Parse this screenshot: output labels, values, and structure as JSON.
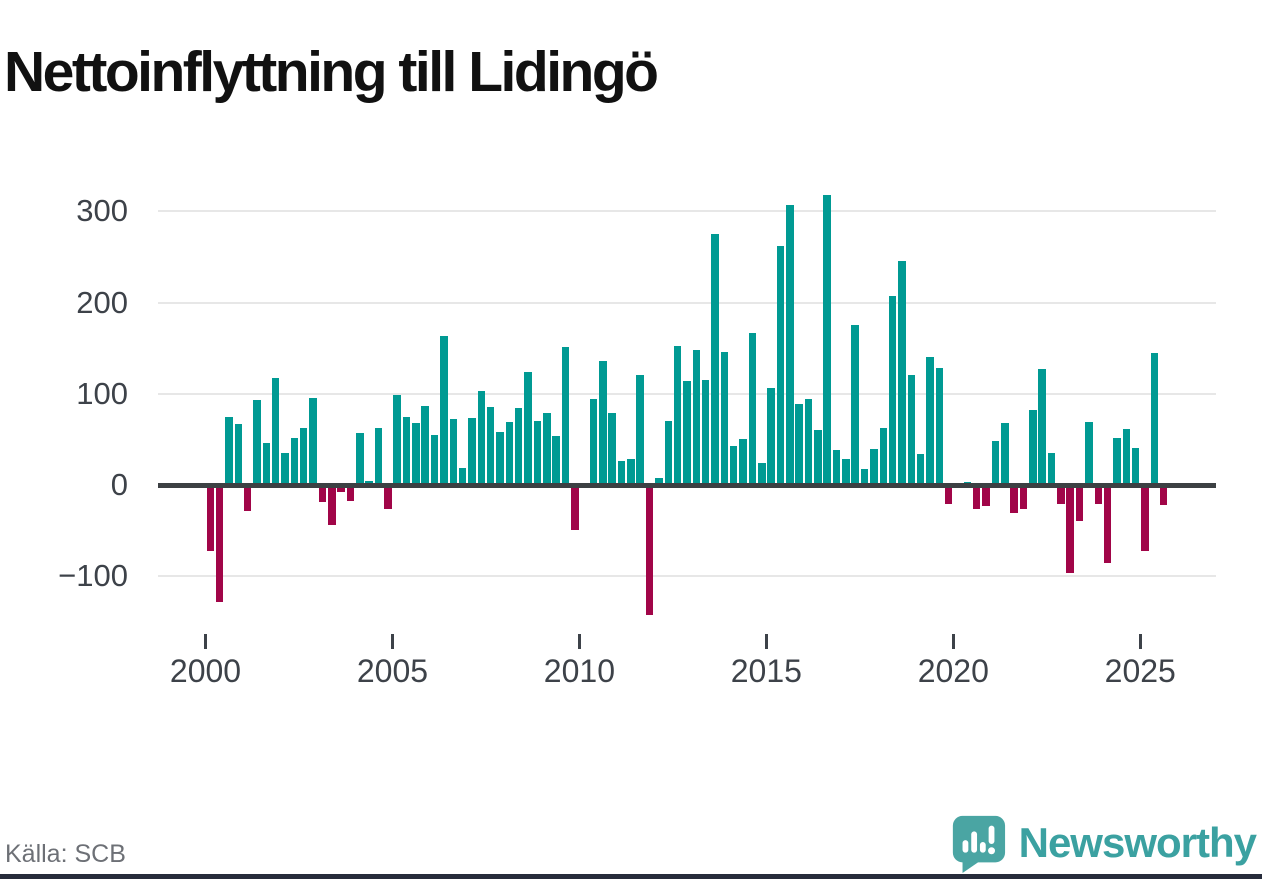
{
  "title": "Nettoinflyttning till Lidingö",
  "source": "Källa: SCB",
  "branding": {
    "name": "Newsworthy"
  },
  "colors": {
    "positive": "#009a93",
    "negative": "#a10548",
    "zero_axis": "#3c4043",
    "gridline": "#e7e7e7",
    "axis_text": "#3d4249",
    "source_text": "#6d7076",
    "brand_teal": "#3ba1a1"
  },
  "chart_data": {
    "type": "bar",
    "title": "Nettoinflyttning till Lidingö",
    "frequency": "quarterly",
    "start": "2000-Q1",
    "end": "2025-Q3",
    "grid": true,
    "ylim": [
      -160,
      335
    ],
    "y_axis": {
      "ticks": [
        300,
        200,
        100,
        0,
        -100
      ],
      "labels": [
        "300",
        "200",
        "100",
        "0",
        "−100"
      ]
    },
    "x_axis": {
      "ticks": [
        2000,
        2005,
        2010,
        2015,
        2020,
        2025
      ],
      "labels": [
        "2000",
        "2005",
        "2010",
        "2015",
        "2020",
        "2025"
      ]
    },
    "by_year": [
      {
        "year": 2000,
        "q": [
          -72,
          -128,
          75,
          67
        ]
      },
      {
        "year": 2001,
        "q": [
          -29,
          93,
          46,
          117
        ]
      },
      {
        "year": 2002,
        "q": [
          35,
          52,
          63,
          95
        ]
      },
      {
        "year": 2003,
        "q": [
          -19,
          -44,
          -8,
          -17
        ]
      },
      {
        "year": 2004,
        "q": [
          57,
          4,
          62,
          -26
        ]
      },
      {
        "year": 2005,
        "q": [
          99,
          75,
          68,
          87
        ]
      },
      {
        "year": 2006,
        "q": [
          55,
          163,
          72,
          19
        ]
      },
      {
        "year": 2007,
        "q": [
          73,
          103,
          86,
          58
        ]
      },
      {
        "year": 2008,
        "q": [
          69,
          84,
          124,
          70
        ]
      },
      {
        "year": 2009,
        "q": [
          79,
          54,
          151,
          -49
        ]
      },
      {
        "year": 2010,
        "q": [
          0,
          94,
          136,
          79
        ]
      },
      {
        "year": 2011,
        "q": [
          26,
          29,
          121,
          -143
        ]
      },
      {
        "year": 2012,
        "q": [
          8,
          70,
          152,
          114
        ]
      },
      {
        "year": 2013,
        "q": [
          148,
          115,
          275,
          146
        ]
      },
      {
        "year": 2014,
        "q": [
          43,
          50,
          167,
          24
        ]
      },
      {
        "year": 2015,
        "q": [
          106,
          262,
          307,
          89
        ]
      },
      {
        "year": 2016,
        "q": [
          94,
          60,
          318,
          38
        ]
      },
      {
        "year": 2017,
        "q": [
          29,
          175,
          18,
          40
        ]
      },
      {
        "year": 2018,
        "q": [
          62,
          207,
          246,
          121
        ]
      },
      {
        "year": 2019,
        "q": [
          34,
          140,
          128,
          -21
        ]
      },
      {
        "year": 2020,
        "q": [
          0,
          3,
          -26,
          -23
        ]
      },
      {
        "year": 2021,
        "q": [
          48,
          68,
          -31,
          -26
        ]
      },
      {
        "year": 2022,
        "q": [
          82,
          127,
          35,
          -21
        ]
      },
      {
        "year": 2023,
        "q": [
          -97,
          -40,
          69,
          -21
        ]
      },
      {
        "year": 2024,
        "q": [
          -85,
          52,
          61,
          41
        ]
      },
      {
        "year": 2025,
        "q": [
          -72,
          145,
          -22
        ]
      }
    ]
  }
}
